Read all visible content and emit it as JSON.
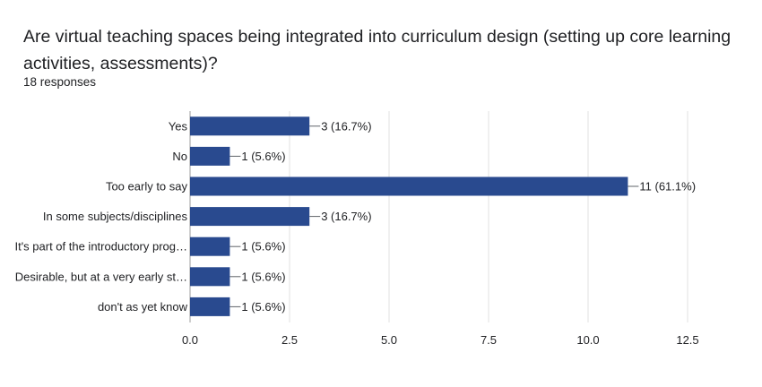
{
  "header": {
    "question": "Are virtual teaching spaces being integrated into curriculum design (setting up core learning activities, assessments)?",
    "responses": "18 responses"
  },
  "chart_data": {
    "type": "bar",
    "orientation": "horizontal",
    "categories": [
      "Yes",
      "No",
      "Too early to say",
      "In some subjects/disciplines",
      "It's part of the introductory prog…",
      "Desirable, but at a very early st…",
      "don't as yet know"
    ],
    "values": [
      3,
      1,
      11,
      3,
      1,
      1,
      1
    ],
    "data_labels": [
      "3 (16.7%)",
      "1 (5.6%)",
      "11 (61.1%)",
      "3 (16.7%)",
      "1 (5.6%)",
      "1 (5.6%)",
      "1 (5.6%)"
    ],
    "xlim": [
      0,
      12.5
    ],
    "xticks": [
      "0.0",
      "2.5",
      "5.0",
      "7.5",
      "10.0",
      "12.5"
    ],
    "xtick_values": [
      0,
      2.5,
      5,
      7.5,
      10,
      12.5
    ],
    "grid": true,
    "bar_color": "#294a8f",
    "grid_color": "#e0e0e0"
  }
}
